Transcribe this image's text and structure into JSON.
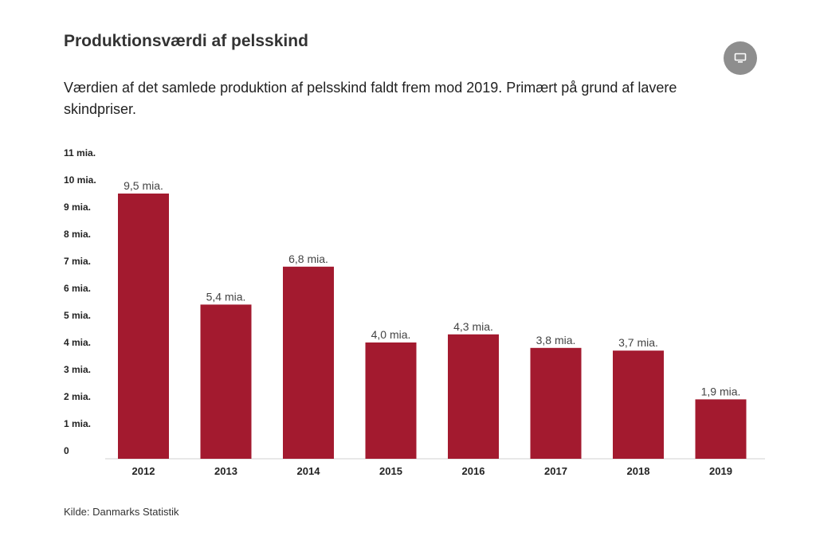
{
  "header": {
    "title": "Produktionsværdi af pelsskind",
    "subtitle": "Værdien af det samlede produktion af pelsskind faldt frem mod 2019. Primært på grund af lavere skindpriser."
  },
  "toolbar": {
    "screen_icon": "monitor-icon"
  },
  "footer": {
    "source": "Kilde: Danmarks Statistik"
  },
  "colors": {
    "bar": "#a31a2f",
    "axis": "#d0d0d0"
  },
  "chart_data": {
    "type": "bar",
    "title": "Produktionsværdi af pelsskind",
    "xlabel": "",
    "ylabel": "",
    "ylim": [
      0,
      11
    ],
    "grid": false,
    "yticks": [
      0,
      1,
      2,
      3,
      4,
      5,
      6,
      7,
      8,
      9,
      10,
      11
    ],
    "ytick_labels": [
      "0",
      "1 mia.",
      "2 mia.",
      "3 mia.",
      "4 mia.",
      "5 mia.",
      "6 mia.",
      "7 mia.",
      "8 mia.",
      "9 mia.",
      "10 mia.",
      "11 mia."
    ],
    "categories": [
      "2012",
      "2013",
      "2014",
      "2015",
      "2016",
      "2017",
      "2018",
      "2019"
    ],
    "values": [
      9.5,
      5.4,
      6.8,
      4.0,
      4.3,
      3.8,
      3.7,
      1.9
    ],
    "value_labels": [
      "9,5 mia.",
      "5,4 mia.",
      "6,8 mia.",
      "4,0 mia.",
      "4,3 mia.",
      "3,8 mia.",
      "3,7 mia.",
      "1,9 mia."
    ]
  }
}
